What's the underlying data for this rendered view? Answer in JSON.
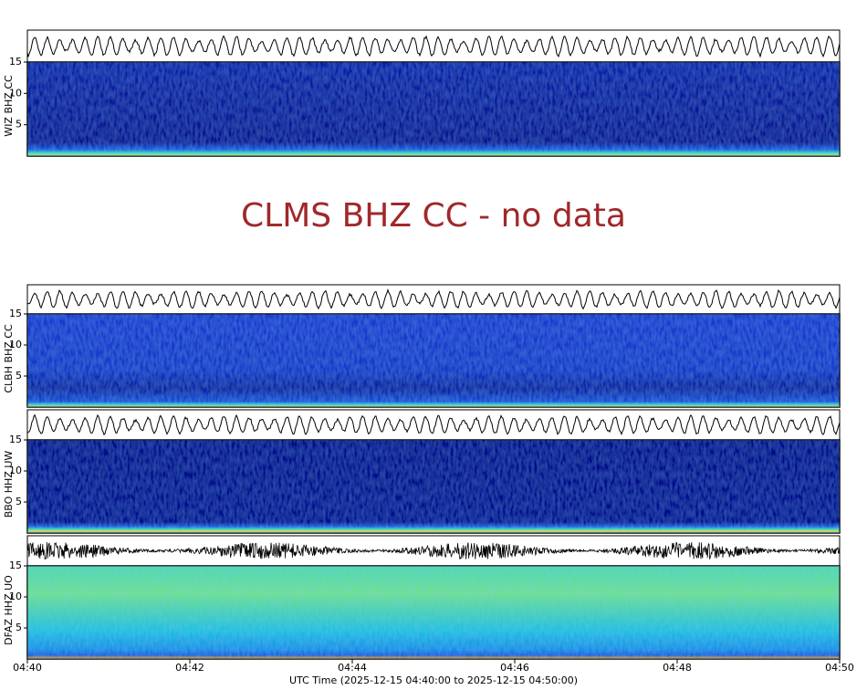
{
  "panels": [
    {
      "label": "WIZ BHZ CC",
      "ylim": [
        0,
        15
      ],
      "yticks": [
        5,
        10,
        15
      ]
    },
    {
      "message": "CLMS BHZ CC - no data"
    },
    {
      "label": "CLBH BHZ CC",
      "ylim": [
        0,
        15
      ],
      "yticks": [
        5,
        10,
        15
      ]
    },
    {
      "label": "BBO HHZ UW",
      "ylim": [
        0,
        15
      ],
      "yticks": [
        5,
        10,
        15
      ]
    },
    {
      "label": "DFAZ HHZ UO",
      "ylim": [
        0,
        15
      ],
      "yticks": [
        5,
        10,
        15
      ]
    }
  ],
  "xaxis": {
    "ticks": [
      "04:40",
      "04:42",
      "04:44",
      "04:46",
      "04:48",
      "04:50"
    ],
    "label": "UTC Time (2025-12-15 04:40:00 to 2025-12-15 04:50:00)"
  }
}
